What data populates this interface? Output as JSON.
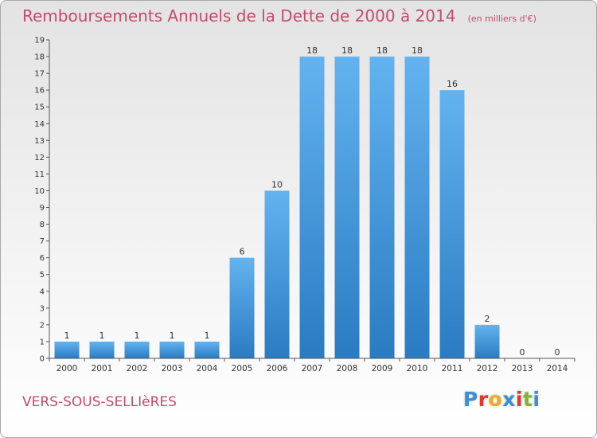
{
  "chart_data": {
    "type": "bar",
    "title": "Remboursements Annuels de la Dette de 2000 à 2014",
    "unit": "(en milliers d'€)",
    "categories": [
      "2000",
      "2001",
      "2002",
      "2003",
      "2004",
      "2005",
      "2006",
      "2007",
      "2008",
      "2009",
      "2010",
      "2011",
      "2012",
      "2013",
      "2014"
    ],
    "values": [
      1,
      1,
      1,
      1,
      1,
      6,
      10,
      18,
      18,
      18,
      18,
      16,
      2,
      0,
      0
    ],
    "ylim": [
      0,
      19
    ],
    "yticks": [
      0,
      1,
      2,
      3,
      4,
      5,
      6,
      7,
      8,
      9,
      10,
      11,
      12,
      13,
      14,
      15,
      16,
      17,
      18,
      19
    ],
    "xlabel": "",
    "ylabel": "",
    "grid": false,
    "bar_color": "#4a9ee0"
  },
  "footer": {
    "city": "VERS-SOUS-SELLIèRES",
    "logo_letters": [
      "P",
      "r",
      "o",
      "x",
      "i",
      "t",
      "i"
    ],
    "logo_colors": [
      "#3a8fd8",
      "#e8332a",
      "#f5a623",
      "#3a8fd8",
      "#e8332a",
      "#7cb82f",
      "#3a8fd8"
    ]
  }
}
